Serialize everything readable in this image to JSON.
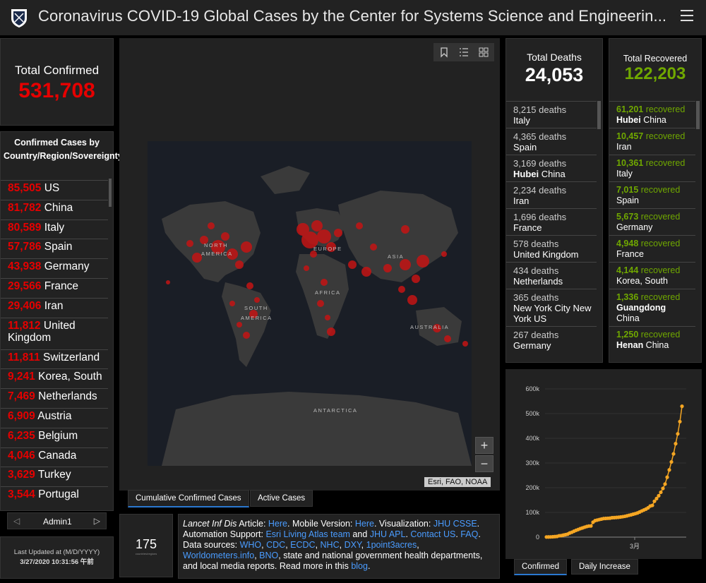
{
  "header": {
    "title": "Coronavirus COVID-19 Global Cases by the Center for Systems Science and Engineerin..."
  },
  "total_confirmed": {
    "label": "Total Confirmed",
    "value": "531,708"
  },
  "country_list": {
    "heading": "Confirmed Cases by Country/Region/Sovereignty",
    "rows": [
      {
        "num": "85,505",
        "name": "US"
      },
      {
        "num": "81,782",
        "name": "China"
      },
      {
        "num": "80,589",
        "name": "Italy"
      },
      {
        "num": "57,786",
        "name": "Spain"
      },
      {
        "num": "43,938",
        "name": "Germany"
      },
      {
        "num": "29,566",
        "name": "France"
      },
      {
        "num": "29,406",
        "name": "Iran"
      },
      {
        "num": "11,812",
        "name": "United Kingdom"
      },
      {
        "num": "11,811",
        "name": "Switzerland"
      },
      {
        "num": "9,241",
        "name": "Korea, South"
      },
      {
        "num": "7,469",
        "name": "Netherlands"
      },
      {
        "num": "6,909",
        "name": "Austria"
      },
      {
        "num": "6,235",
        "name": "Belgium"
      },
      {
        "num": "4,046",
        "name": "Canada"
      },
      {
        "num": "3,629",
        "name": "Turkey"
      },
      {
        "num": "3,544",
        "name": "Portugal"
      }
    ],
    "nav_label": "Admin1",
    "nav_prev": "◁",
    "nav_next": "▷"
  },
  "last_updated": {
    "label": "Last Updated at (M/D/YYYY)",
    "value": "3/27/2020 10:31:56 午前"
  },
  "map": {
    "labels": [
      "NORTH",
      "AMERICA",
      "EUROPE",
      "ASIA",
      "AFRICA",
      "SOUTH",
      "AMERICA",
      "AUSTRALIA",
      "ANTARCTICA"
    ],
    "attribution": "Esri, FAO, NOAA",
    "zoom_in": "+",
    "zoom_out": "−",
    "tabs": [
      "Cumulative Confirmed Cases",
      "Active Cases"
    ]
  },
  "count": {
    "value": "175",
    "sub": "countries/regions"
  },
  "info": {
    "p1": "Lancet Inf Dis",
    "p2": " Article: ",
    "link_here1": "Here",
    "p3": ". Mobile Version: ",
    "link_here2": "Here",
    "p4": ". Visualization: ",
    "link_jhu": "JHU CSSE",
    "p5": ". Automation Support: ",
    "link_esri": "Esri Living Atlas team",
    "p6": " and ",
    "link_apl": "JHU APL",
    "p7": ". ",
    "link_contact": "Contact US",
    "p8": ". ",
    "link_faq": "FAQ",
    "p9": ". Data sources: ",
    "src1": "WHO",
    "src2": "CDC",
    "src3": "ECDC",
    "src4": "NHC",
    "src5": "DXY",
    "src6": "1point3acres",
    "src7": "Worldometers.info",
    "src8": "BNO",
    "p10": ", state and national government health departments, and local media reports.  Read more in this ",
    "link_blog": "blog",
    "p11": "."
  },
  "deaths": {
    "label": "Total Deaths",
    "value": "24,053",
    "rows": [
      {
        "num": "8,215 deaths",
        "bold": "",
        "place": "Italy"
      },
      {
        "num": "4,365 deaths",
        "bold": "",
        "place": "Spain"
      },
      {
        "num": "3,169 deaths",
        "bold": "Hubei",
        "place": " China"
      },
      {
        "num": "2,234 deaths",
        "bold": "",
        "place": "Iran"
      },
      {
        "num": "1,696 deaths",
        "bold": "",
        "place": "France"
      },
      {
        "num": "578 deaths",
        "bold": "",
        "place": "United Kingdom"
      },
      {
        "num": "434 deaths",
        "bold": "",
        "place": "Netherlands"
      },
      {
        "num": "365 deaths",
        "bold": "",
        "place": "New York City New York US"
      },
      {
        "num": "267 deaths",
        "bold": "",
        "place": "Germany"
      }
    ]
  },
  "recovered": {
    "label": "Total Recovered",
    "value": "122,203",
    "rows": [
      {
        "num": "61,201",
        "word": " recovered",
        "bold": "Hubei",
        "place": " China"
      },
      {
        "num": "10,457",
        "word": " recovered",
        "bold": "",
        "place": "Iran"
      },
      {
        "num": "10,361",
        "word": " recovered",
        "bold": "",
        "place": "Italy"
      },
      {
        "num": "7,015",
        "word": " recovered",
        "bold": "",
        "place": "Spain"
      },
      {
        "num": "5,673",
        "word": " recovered",
        "bold": "",
        "place": "Germany"
      },
      {
        "num": "4,948",
        "word": " recovered",
        "bold": "",
        "place": "France"
      },
      {
        "num": "4,144",
        "word": " recovered",
        "bold": "",
        "place": "Korea, South"
      },
      {
        "num": "1,336",
        "word": " recovered",
        "bold": "Guangdong",
        "place": " China"
      },
      {
        "num": "1,250",
        "word": " recovered",
        "bold": "Henan",
        "place": " China"
      }
    ]
  },
  "chart_tabs": [
    "Confirmed",
    "Daily Increase"
  ],
  "chart_data": {
    "type": "line",
    "y_ticks": [
      "0",
      "100k",
      "200k",
      "300k",
      "400k",
      "500k",
      "600k"
    ],
    "x_tick_labels": [
      "3月"
    ],
    "ylim": [
      0,
      600000
    ],
    "values": [
      555,
      654,
      941,
      1434,
      2118,
      2927,
      5578,
      6166,
      8234,
      9927,
      12038,
      16787,
      19881,
      23892,
      27635,
      30817,
      34391,
      37120,
      40150,
      42762,
      44802,
      45221,
      60368,
      66885,
      69030,
      71224,
      73258,
      75136,
      75639,
      76197,
      76819,
      78572,
      78958,
      79561,
      80406,
      81388,
      82746,
      84112,
      86011,
      88369,
      90306,
      92840,
      95120,
      97886,
      101801,
      105847,
      109821,
      113590,
      118620,
      125875,
      128352,
      145205,
      156101,
      167454,
      181574,
      197102,
      214821,
      242570,
      272208,
      304507,
      336953,
      378231,
      418041,
      467653,
      529591
    ],
    "color": "#f5a623"
  },
  "colors": {
    "confirmed": "#e60000",
    "recovered": "#70a800",
    "link": "#4a9cff",
    "chart": "#f5a623"
  }
}
